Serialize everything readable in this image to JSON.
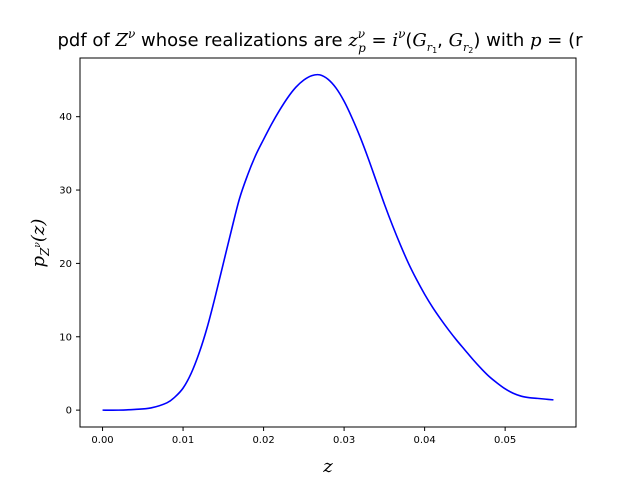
{
  "chart_data": {
    "type": "line",
    "title": {
      "p1": "pdf of ",
      "Z": "Z",
      "nu": "ν",
      "p2": " whose realizations are ",
      "z": "z",
      "p": "p",
      "eq": " = ",
      "i": "i",
      "lparen": "(",
      "G": "G",
      "r": "r",
      "one": "1",
      "two": "2",
      "comma": ", ",
      "rparen": ")",
      "with": " with ",
      "tail": "(r"
    },
    "xlabel": "z",
    "ylabel": {
      "p": "p",
      "Z": "Z",
      "nu": "ν",
      "arg": "(z)"
    },
    "xlim": [
      -0.0028,
      0.0588
    ],
    "ylim": [
      -2.3,
      48.0
    ],
    "xticks": [
      "0.00",
      "0.01",
      "0.02",
      "0.03",
      "0.04",
      "0.05"
    ],
    "xtick_values": [
      0.0,
      0.01,
      0.02,
      0.03,
      0.04,
      0.05
    ],
    "yticks": [
      "0",
      "10",
      "20",
      "30",
      "40"
    ],
    "ytick_values": [
      0,
      10,
      20,
      30,
      40
    ],
    "grid": false,
    "series": [
      {
        "color": "#0000ff",
        "x": [
          0.0,
          0.002,
          0.004,
          0.006,
          0.008,
          0.009,
          0.01,
          0.011,
          0.012,
          0.013,
          0.014,
          0.015,
          0.016,
          0.017,
          0.018,
          0.019,
          0.02,
          0.021,
          0.022,
          0.023,
          0.024,
          0.025,
          0.026,
          0.027,
          0.028,
          0.029,
          0.03,
          0.031,
          0.032,
          0.033,
          0.034,
          0.035,
          0.036,
          0.037,
          0.038,
          0.039,
          0.04,
          0.041,
          0.042,
          0.043,
          0.044,
          0.045,
          0.046,
          0.047,
          0.048,
          0.049,
          0.05,
          0.051,
          0.052,
          0.053,
          0.054,
          0.055,
          0.056
        ],
        "y": [
          0.0,
          0.0,
          0.1,
          0.3,
          1.0,
          1.8,
          3.0,
          5.0,
          7.8,
          11.3,
          15.5,
          20.0,
          24.5,
          28.8,
          32.0,
          34.7,
          36.9,
          39.0,
          40.9,
          42.6,
          44.0,
          45.0,
          45.6,
          45.7,
          45.1,
          43.9,
          42.1,
          39.8,
          37.2,
          34.3,
          31.2,
          28.1,
          25.2,
          22.5,
          20.0,
          17.8,
          15.8,
          14.0,
          12.4,
          10.9,
          9.5,
          8.2,
          6.9,
          5.7,
          4.6,
          3.7,
          2.9,
          2.3,
          1.9,
          1.7,
          1.6,
          1.5,
          1.4
        ]
      }
    ]
  }
}
